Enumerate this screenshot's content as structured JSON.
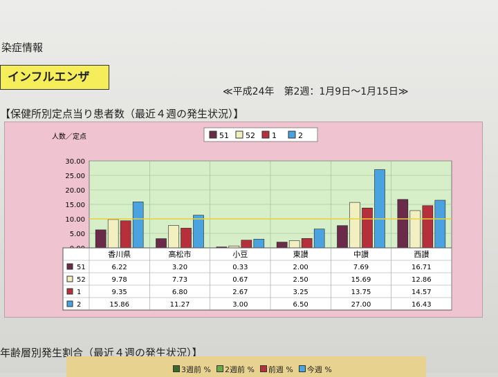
{
  "header": {
    "title_fragment": "染症情報",
    "disease": "インフルエンザ",
    "period": "≪平成24年　第2週：1月9日～1月15日≫"
  },
  "section1_title": "【保健所別定点当り患者数（最近４週の発生状況）】",
  "section2_title": "年齢層別発生割合（最近４週の発生状況）】",
  "bottom_legend": [
    "3週前 %",
    "2週前 %",
    "前週 %",
    "今週 %"
  ],
  "colors": {
    "s51": "#6a2a4a",
    "s52": "#f2efc0",
    "s1": "#b5303a",
    "s2": "#4aa3df",
    "plot_bg": "#d6efc8",
    "ref_line": "#e8d23a"
  },
  "chart_data": {
    "type": "bar",
    "ylabel": "人数／定点",
    "ylim": [
      0,
      30
    ],
    "yticks": [
      "30.00",
      "25.00",
      "20.00",
      "15.00",
      "10.00",
      "5.00",
      "0.00"
    ],
    "categories": [
      "香川県",
      "高松市",
      "小豆",
      "東讃",
      "中讃",
      "西讃"
    ],
    "reference_value": 10,
    "series": [
      {
        "name": "51",
        "values": [
          6.22,
          3.2,
          0.33,
          2.0,
          7.69,
          16.71
        ],
        "labels": [
          "6.22",
          "3.20",
          "0.33",
          "2.00",
          "7.69",
          "16.71"
        ]
      },
      {
        "name": "52",
        "values": [
          9.78,
          7.73,
          0.67,
          2.5,
          15.69,
          12.86
        ],
        "labels": [
          "9.78",
          "7.73",
          "0.67",
          "2.50",
          "15.69",
          "12.86"
        ]
      },
      {
        "name": "1",
        "values": [
          9.35,
          6.8,
          2.67,
          3.25,
          13.75,
          14.57
        ],
        "labels": [
          "9.35",
          "6.80",
          "2.67",
          "3.25",
          "13.75",
          "14.57"
        ]
      },
      {
        "name": "2",
        "values": [
          15.86,
          11.27,
          3.0,
          6.5,
          27.0,
          16.43
        ],
        "labels": [
          "15.86",
          "11.27",
          "3.00",
          "6.50",
          "27.00",
          "16.43"
        ]
      }
    ]
  }
}
